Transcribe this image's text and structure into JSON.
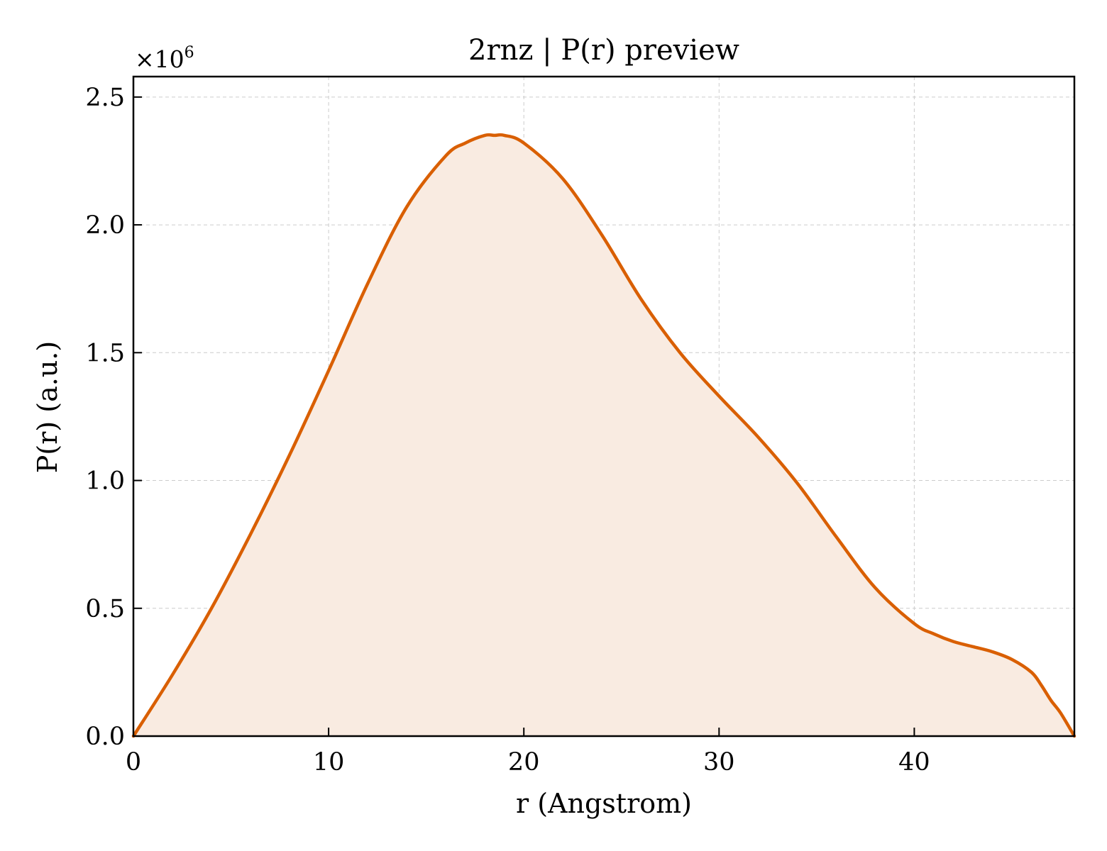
{
  "chart_data": {
    "type": "area",
    "title": "2rnz | P(r) preview",
    "xlabel": "r (Angstrom)",
    "ylabel": "P(r) (a.u.)",
    "y_multiplier": "×10",
    "y_multiplier_exp": "6",
    "xlim": [
      0,
      48.2
    ],
    "ylim": [
      0,
      2.58
    ],
    "xticks": [
      0,
      10,
      20,
      30,
      40
    ],
    "xtick_labels": [
      "0",
      "10",
      "20",
      "30",
      "40"
    ],
    "yticks": [
      0,
      0.5,
      1.0,
      1.5,
      2.0,
      2.5
    ],
    "ytick_labels": [
      "0.0",
      "0.5",
      "1.0",
      "1.5",
      "2.0",
      "2.5"
    ],
    "grid": true,
    "series": [
      {
        "color": "#d95f02",
        "fill_color": "#f9ebe1",
        "x": [
          0,
          2,
          4,
          6,
          8,
          10,
          12,
          14,
          16,
          17,
          18,
          18.5,
          19,
          20,
          22,
          24,
          26,
          28,
          30,
          32,
          34,
          36,
          38,
          40,
          41,
          42,
          43,
          44,
          45,
          46,
          46.5,
          47,
          47.5,
          48.2
        ],
        "y": [
          0.0,
          0.24,
          0.5,
          0.79,
          1.1,
          1.43,
          1.77,
          2.07,
          2.27,
          2.32,
          2.35,
          2.35,
          2.35,
          2.32,
          2.18,
          1.96,
          1.71,
          1.5,
          1.33,
          1.17,
          0.99,
          0.78,
          0.58,
          0.44,
          0.4,
          0.37,
          0.35,
          0.33,
          0.3,
          0.25,
          0.2,
          0.14,
          0.09,
          0.0
        ]
      }
    ]
  }
}
